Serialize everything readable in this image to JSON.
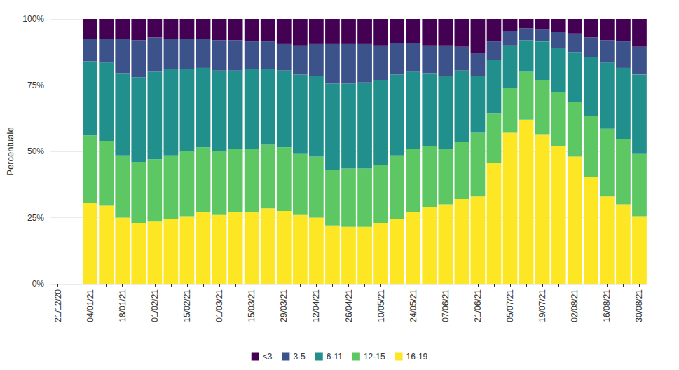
{
  "chart_data": {
    "type": "bar",
    "stacked": true,
    "y_label": "Percentuale",
    "categories": [
      "21/12/20",
      null,
      "04/01/21",
      null,
      "18/01/21",
      null,
      "01/02/21",
      null,
      "15/02/21",
      null,
      "01/03/21",
      null,
      "15/03/21",
      null,
      "29/03/21",
      null,
      "12/04/21",
      null,
      "26/04/21",
      null,
      "10/05/21",
      null,
      "24/05/21",
      null,
      "07/06/21",
      null,
      "21/06/21",
      null,
      "05/07/21",
      null,
      "19/07/21",
      null,
      "02/08/21",
      null,
      "16/08/21",
      null,
      "30/08/21"
    ],
    "series": [
      {
        "name": "<3",
        "color": "#440154",
        "values": [
          null,
          null,
          7.5,
          7.5,
          7.5,
          8,
          7,
          7.5,
          7.5,
          7.5,
          8,
          8,
          8.5,
          8.5,
          9.5,
          10,
          9.5,
          9.5,
          9.5,
          9.5,
          10,
          9,
          9,
          10,
          10,
          10.5,
          13,
          8.5,
          4.5,
          3.5,
          4,
          5,
          5.5,
          7,
          8,
          8.5,
          10.5
        ]
      },
      {
        "name": "3-5",
        "color": "#3b528b",
        "values": [
          null,
          null,
          8.5,
          9,
          13,
          14,
          13,
          11.5,
          11.5,
          11,
          11.5,
          11.5,
          10.5,
          10.5,
          10,
          11,
          12,
          15,
          15,
          14.5,
          13,
          12,
          11,
          10.5,
          11.5,
          9,
          8.5,
          7,
          5.5,
          4.5,
          4.5,
          6,
          7,
          7.5,
          8.5,
          10,
          10.5
        ]
      },
      {
        "name": "6-11",
        "color": "#21908c",
        "values": [
          null,
          null,
          28,
          29.5,
          31,
          32,
          33,
          32.5,
          31,
          30,
          30.5,
          29.5,
          30,
          28.5,
          29,
          30,
          30.5,
          32.5,
          32,
          32.5,
          32,
          30.5,
          29,
          27.5,
          27.5,
          27,
          21.5,
          20,
          16,
          12,
          14.5,
          16.5,
          19,
          22,
          25,
          27,
          30
        ]
      },
      {
        "name": "12-15",
        "color": "#5dc863",
        "values": [
          null,
          null,
          25.5,
          24.5,
          23.5,
          23,
          23.5,
          24,
          24.5,
          24.5,
          24,
          24,
          24,
          24,
          24,
          23,
          23,
          21,
          22,
          22,
          22,
          24,
          24,
          23,
          21,
          21.5,
          24,
          19,
          17,
          18,
          20.5,
          20.5,
          20.5,
          23,
          25.5,
          24.5,
          23.5
        ]
      },
      {
        "name": "16-19",
        "color": "#fde725",
        "values": [
          null,
          null,
          30.5,
          29.5,
          25,
          23,
          23.5,
          24.5,
          25.5,
          27,
          26,
          27,
          27,
          28.5,
          27.5,
          26,
          25,
          22,
          21.5,
          21.5,
          23,
          24.5,
          27,
          29,
          30,
          32,
          33,
          45.5,
          57,
          62,
          56.5,
          52,
          48,
          40.5,
          33,
          30,
          25.5
        ]
      }
    ],
    "ylim": [
      0,
      100
    ],
    "yticks": [
      {
        "value": 0,
        "label": "0%"
      },
      {
        "value": 25,
        "label": "25%"
      },
      {
        "value": 50,
        "label": "50%"
      },
      {
        "value": 75,
        "label": "75%"
      },
      {
        "value": 100,
        "label": "100%"
      }
    ],
    "legend": "bottom",
    "grid": true
  }
}
